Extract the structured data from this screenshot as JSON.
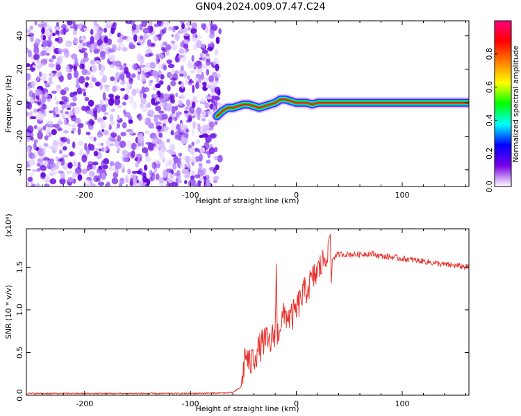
{
  "title": "GN04.2024.009.07.47.C24",
  "chart_data": [
    {
      "type": "heatmap",
      "xlabel": "Height of straight line (km)",
      "ylabel": "Frequency (Hz)",
      "xlim": [
        -255,
        163
      ],
      "ylim": [
        -50,
        49
      ],
      "x_ticks": [
        -200,
        -100,
        0,
        100
      ],
      "y_ticks": [
        -40,
        -20,
        0,
        20,
        40
      ],
      "colorbar": {
        "label": "Normalized spectral amplitude",
        "range": [
          0,
          1
        ],
        "ticks": [
          "0.0",
          "0.2",
          "0.4",
          "0.6",
          "0.8"
        ],
        "colormap": [
          "#ffffff",
          "#7a00e6",
          "#0000ff",
          "#00ffff",
          "#00ff00",
          "#ffff00",
          "#ff8000",
          "#ff0000",
          "#ff0080"
        ]
      },
      "noise_region_x": [
        -255,
        -72
      ],
      "signal_trace": {
        "x": [
          -75,
          -70,
          -65,
          -60,
          -55,
          -50,
          -45,
          -40,
          -35,
          -30,
          -25,
          -20,
          -15,
          -10,
          -5,
          0,
          5,
          10,
          15,
          20,
          25,
          30,
          40,
          60,
          100,
          163
        ],
        "y": [
          -8,
          -5,
          -3,
          -3,
          -2,
          -1,
          -1,
          -2,
          -3,
          -2,
          -1,
          0,
          2,
          2,
          1,
          0,
          0,
          0,
          -1,
          0,
          0,
          0,
          0,
          0,
          0,
          0
        ]
      }
    },
    {
      "type": "line",
      "xlabel": "Height of straight line (km)",
      "ylabel": "SNR (10 * v/v)",
      "y_multiplier": "(x10⁴)",
      "xlim": [
        -255,
        163
      ],
      "ylim": [
        0,
        1.95
      ],
      "x_ticks": [
        -200,
        -100,
        0,
        100
      ],
      "y_ticks": [
        "0.0",
        "0.5",
        "1.0",
        "1.5"
      ],
      "line_color": "#e8302a",
      "series": [
        {
          "x": [
            -255,
            -200,
            -100,
            -60,
            -52,
            -50,
            -48,
            -46,
            -44,
            -40,
            -35,
            -30,
            -25,
            -20,
            -19,
            -18,
            -15,
            -10,
            -5,
            0,
            5,
            10,
            15,
            20,
            25,
            28,
            30,
            32,
            33,
            34,
            36,
            40,
            50,
            60,
            70,
            80,
            90,
            100,
            120,
            140,
            163
          ],
          "y": [
            0.02,
            0.02,
            0.02,
            0.03,
            0.1,
            0.3,
            0.5,
            0.42,
            0.35,
            0.45,
            0.55,
            0.65,
            0.6,
            0.75,
            1.5,
            0.7,
            0.85,
            0.95,
            0.9,
            1.0,
            1.15,
            1.25,
            1.35,
            1.45,
            1.55,
            1.65,
            1.75,
            1.9,
            1.3,
            1.6,
            1.62,
            1.65,
            1.65,
            1.65,
            1.66,
            1.63,
            1.62,
            1.6,
            1.57,
            1.53,
            1.5
          ]
        }
      ]
    }
  ]
}
